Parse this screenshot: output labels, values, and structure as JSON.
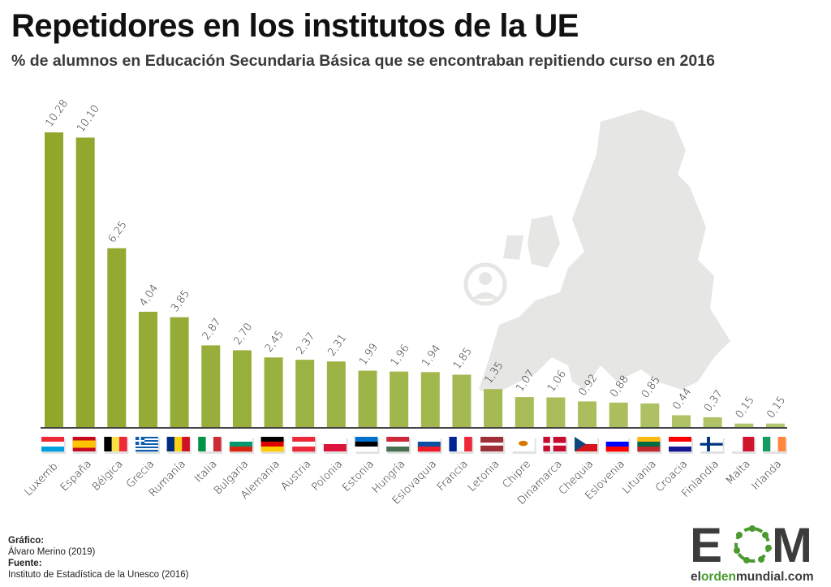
{
  "header": {
    "title": "Repetidores en los institutos de la UE",
    "subtitle": "% de alumnos en Educación Secundaria Básica que se encontraban repitiendo curso en 2016"
  },
  "credits": {
    "grafico_label": "Gráfico:",
    "grafico_value": "Álvaro Merino (2019)",
    "fuente_label": "Fuente:",
    "fuente_value": "Instituto de Estadística de la Unesco (2016)"
  },
  "logo": {
    "letters_left": "E",
    "letters_right": "M",
    "url_parts": [
      "el",
      "orden",
      "mundial",
      ".com"
    ],
    "colors": {
      "dark": "#3c3c3c",
      "green": "#4a9a2e"
    }
  },
  "colors": {
    "bar_dark": "#8fa72b",
    "bar_light": "#b4c66e",
    "baseline": "#444444",
    "map": "#e6e6e4"
  },
  "chart_data": {
    "type": "bar",
    "title": "Repetidores en los institutos de la UE",
    "subtitle": "% de alumnos en Educación Secundaria Básica que se encontraban repitiendo curso en 2016",
    "xlabel": "",
    "ylabel": "",
    "ylim": [
      0,
      10.28
    ],
    "grid": false,
    "legend": "none",
    "data_labels": true,
    "categories": [
      "Luxemb.",
      "España",
      "Bélgica",
      "Grecia",
      "Rumanía",
      "Italia",
      "Bulgaria",
      "Alemania",
      "Austria",
      "Polonia",
      "Estonia",
      "Hungría",
      "Eslovaquia",
      "Francia",
      "Letonia",
      "Chipre",
      "Dinamarca",
      "Chequia",
      "Eslovenia",
      "Lituania",
      "Croacia",
      "Finlandia",
      "Malta",
      "Irlanda"
    ],
    "values": [
      10.28,
      10.1,
      6.25,
      4.04,
      3.85,
      2.87,
      2.7,
      2.45,
      2.37,
      2.31,
      1.99,
      1.96,
      1.94,
      1.85,
      1.35,
      1.07,
      1.06,
      0.92,
      0.88,
      0.85,
      0.44,
      0.37,
      0.15,
      0.15
    ],
    "value_labels": [
      "10,28",
      "10,10",
      "6,25",
      "4,04",
      "3,85",
      "2,87",
      "2,70",
      "2,45",
      "2,37",
      "2,31",
      "1,99",
      "1,96",
      "1,94",
      "1,85",
      "1,35",
      "1,07",
      "1,06",
      "0,92",
      "0,88",
      "0,85",
      "0,44",
      "0,37",
      "0,15",
      "0,15"
    ],
    "flags": [
      "lu",
      "es",
      "be",
      "gr",
      "ro",
      "it",
      "bg",
      "de",
      "at",
      "pl",
      "ee",
      "hu",
      "sk",
      "fr",
      "lv",
      "cy",
      "dk",
      "cz",
      "si",
      "lt",
      "hr",
      "fi",
      "mt",
      "ie"
    ]
  }
}
